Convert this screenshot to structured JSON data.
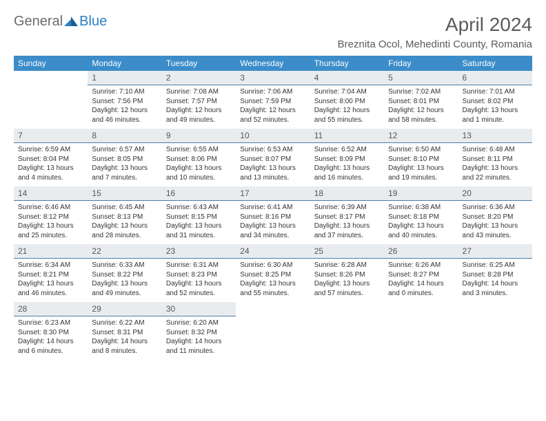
{
  "colors": {
    "header_bg": "#3b8cc9",
    "header_text": "#ffffff",
    "daynum_bg": "#e9ecef",
    "daynum_border": "#4a7ca8",
    "logo_gray": "#6b6b6b",
    "logo_blue": "#2a7fc4",
    "title_color": "#5a5a5a",
    "body_text": "#333333"
  },
  "logo": {
    "part1": "General",
    "part2": "Blue"
  },
  "title": "April 2024",
  "location": "Breznita Ocol, Mehedinti County, Romania",
  "day_headers": [
    "Sunday",
    "Monday",
    "Tuesday",
    "Wednesday",
    "Thursday",
    "Friday",
    "Saturday"
  ],
  "weeks": [
    [
      {
        "num": "",
        "lines": []
      },
      {
        "num": "1",
        "lines": [
          "Sunrise: 7:10 AM",
          "Sunset: 7:56 PM",
          "Daylight: 12 hours and 46 minutes."
        ]
      },
      {
        "num": "2",
        "lines": [
          "Sunrise: 7:08 AM",
          "Sunset: 7:57 PM",
          "Daylight: 12 hours and 49 minutes."
        ]
      },
      {
        "num": "3",
        "lines": [
          "Sunrise: 7:06 AM",
          "Sunset: 7:59 PM",
          "Daylight: 12 hours and 52 minutes."
        ]
      },
      {
        "num": "4",
        "lines": [
          "Sunrise: 7:04 AM",
          "Sunset: 8:00 PM",
          "Daylight: 12 hours and 55 minutes."
        ]
      },
      {
        "num": "5",
        "lines": [
          "Sunrise: 7:02 AM",
          "Sunset: 8:01 PM",
          "Daylight: 12 hours and 58 minutes."
        ]
      },
      {
        "num": "6",
        "lines": [
          "Sunrise: 7:01 AM",
          "Sunset: 8:02 PM",
          "Daylight: 13 hours and 1 minute."
        ]
      }
    ],
    [
      {
        "num": "7",
        "lines": [
          "Sunrise: 6:59 AM",
          "Sunset: 8:04 PM",
          "Daylight: 13 hours and 4 minutes."
        ]
      },
      {
        "num": "8",
        "lines": [
          "Sunrise: 6:57 AM",
          "Sunset: 8:05 PM",
          "Daylight: 13 hours and 7 minutes."
        ]
      },
      {
        "num": "9",
        "lines": [
          "Sunrise: 6:55 AM",
          "Sunset: 8:06 PM",
          "Daylight: 13 hours and 10 minutes."
        ]
      },
      {
        "num": "10",
        "lines": [
          "Sunrise: 6:53 AM",
          "Sunset: 8:07 PM",
          "Daylight: 13 hours and 13 minutes."
        ]
      },
      {
        "num": "11",
        "lines": [
          "Sunrise: 6:52 AM",
          "Sunset: 8:09 PM",
          "Daylight: 13 hours and 16 minutes."
        ]
      },
      {
        "num": "12",
        "lines": [
          "Sunrise: 6:50 AM",
          "Sunset: 8:10 PM",
          "Daylight: 13 hours and 19 minutes."
        ]
      },
      {
        "num": "13",
        "lines": [
          "Sunrise: 6:48 AM",
          "Sunset: 8:11 PM",
          "Daylight: 13 hours and 22 minutes."
        ]
      }
    ],
    [
      {
        "num": "14",
        "lines": [
          "Sunrise: 6:46 AM",
          "Sunset: 8:12 PM",
          "Daylight: 13 hours and 25 minutes."
        ]
      },
      {
        "num": "15",
        "lines": [
          "Sunrise: 6:45 AM",
          "Sunset: 8:13 PM",
          "Daylight: 13 hours and 28 minutes."
        ]
      },
      {
        "num": "16",
        "lines": [
          "Sunrise: 6:43 AM",
          "Sunset: 8:15 PM",
          "Daylight: 13 hours and 31 minutes."
        ]
      },
      {
        "num": "17",
        "lines": [
          "Sunrise: 6:41 AM",
          "Sunset: 8:16 PM",
          "Daylight: 13 hours and 34 minutes."
        ]
      },
      {
        "num": "18",
        "lines": [
          "Sunrise: 6:39 AM",
          "Sunset: 8:17 PM",
          "Daylight: 13 hours and 37 minutes."
        ]
      },
      {
        "num": "19",
        "lines": [
          "Sunrise: 6:38 AM",
          "Sunset: 8:18 PM",
          "Daylight: 13 hours and 40 minutes."
        ]
      },
      {
        "num": "20",
        "lines": [
          "Sunrise: 6:36 AM",
          "Sunset: 8:20 PM",
          "Daylight: 13 hours and 43 minutes."
        ]
      }
    ],
    [
      {
        "num": "21",
        "lines": [
          "Sunrise: 6:34 AM",
          "Sunset: 8:21 PM",
          "Daylight: 13 hours and 46 minutes."
        ]
      },
      {
        "num": "22",
        "lines": [
          "Sunrise: 6:33 AM",
          "Sunset: 8:22 PM",
          "Daylight: 13 hours and 49 minutes."
        ]
      },
      {
        "num": "23",
        "lines": [
          "Sunrise: 6:31 AM",
          "Sunset: 8:23 PM",
          "Daylight: 13 hours and 52 minutes."
        ]
      },
      {
        "num": "24",
        "lines": [
          "Sunrise: 6:30 AM",
          "Sunset: 8:25 PM",
          "Daylight: 13 hours and 55 minutes."
        ]
      },
      {
        "num": "25",
        "lines": [
          "Sunrise: 6:28 AM",
          "Sunset: 8:26 PM",
          "Daylight: 13 hours and 57 minutes."
        ]
      },
      {
        "num": "26",
        "lines": [
          "Sunrise: 6:26 AM",
          "Sunset: 8:27 PM",
          "Daylight: 14 hours and 0 minutes."
        ]
      },
      {
        "num": "27",
        "lines": [
          "Sunrise: 6:25 AM",
          "Sunset: 8:28 PM",
          "Daylight: 14 hours and 3 minutes."
        ]
      }
    ],
    [
      {
        "num": "28",
        "lines": [
          "Sunrise: 6:23 AM",
          "Sunset: 8:30 PM",
          "Daylight: 14 hours and 6 minutes."
        ]
      },
      {
        "num": "29",
        "lines": [
          "Sunrise: 6:22 AM",
          "Sunset: 8:31 PM",
          "Daylight: 14 hours and 8 minutes."
        ]
      },
      {
        "num": "30",
        "lines": [
          "Sunrise: 6:20 AM",
          "Sunset: 8:32 PM",
          "Daylight: 14 hours and 11 minutes."
        ]
      },
      {
        "num": "",
        "lines": []
      },
      {
        "num": "",
        "lines": []
      },
      {
        "num": "",
        "lines": []
      },
      {
        "num": "",
        "lines": []
      }
    ]
  ]
}
